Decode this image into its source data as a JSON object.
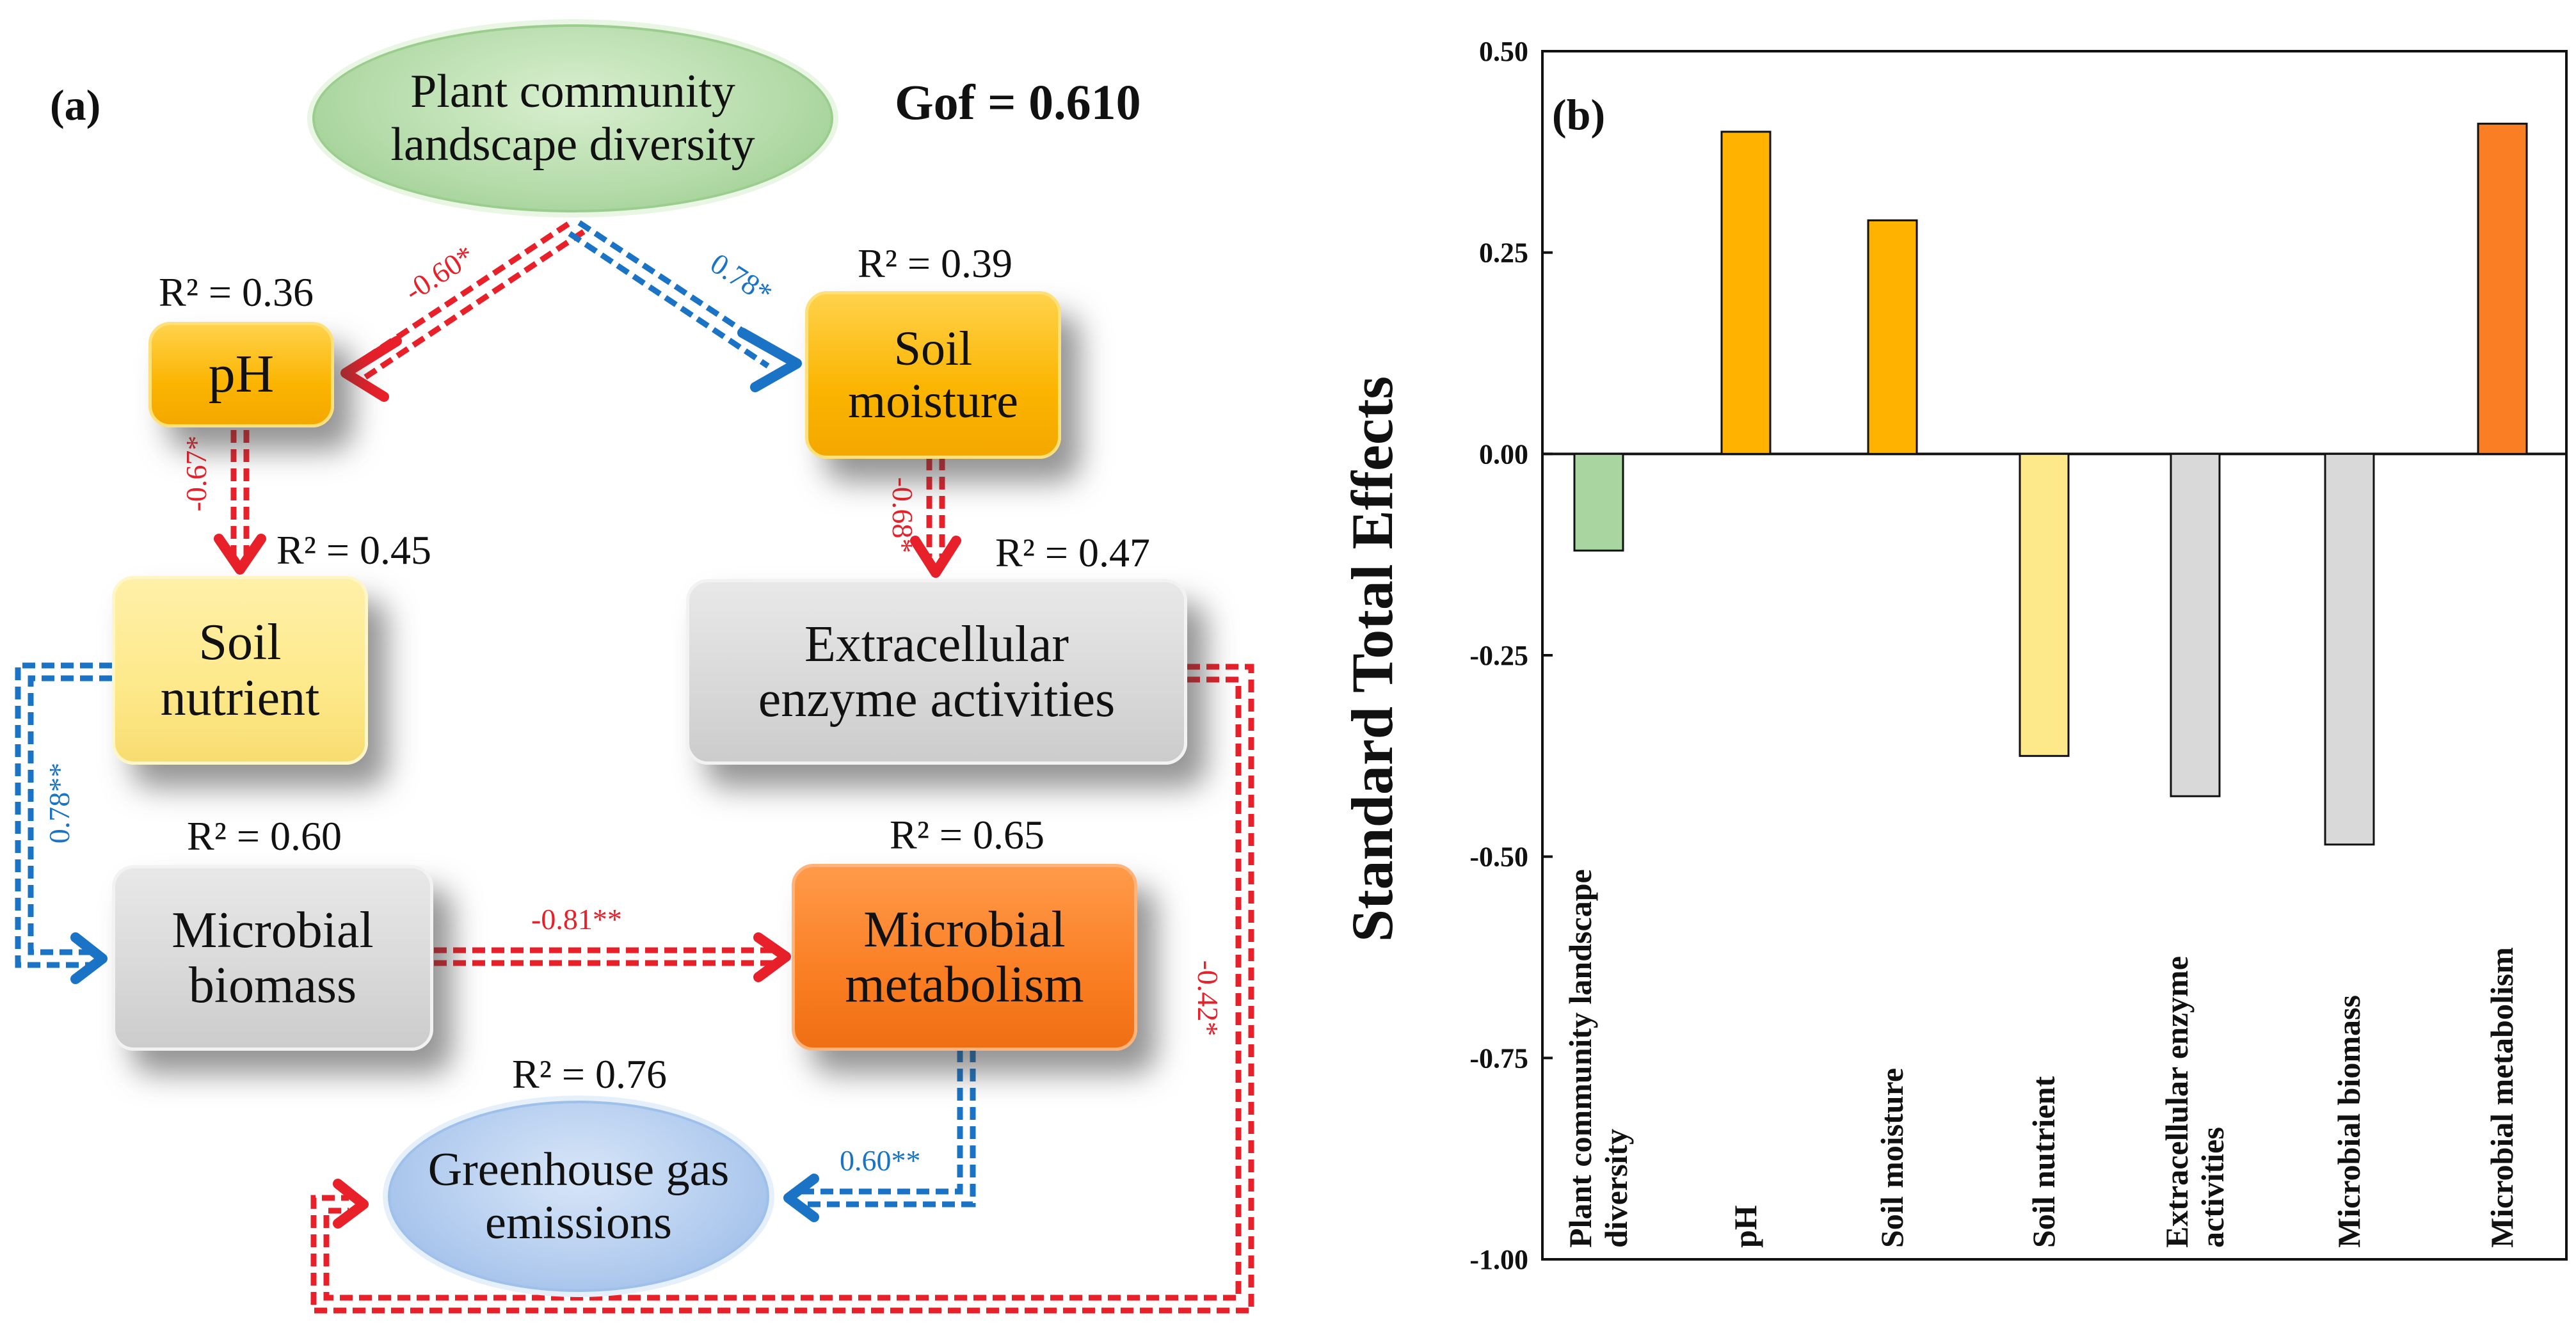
{
  "panel_a": {
    "label": "(a)",
    "gof": "Gof = 0.610",
    "nodes": {
      "plant": {
        "line1": "Plant community",
        "line2": "landscape diversity"
      },
      "ph": {
        "line1": "pH",
        "r2": "R² = 0.36"
      },
      "moisture": {
        "line1": "Soil",
        "line2": "moisture",
        "r2": "R² = 0.39"
      },
      "nutrient": {
        "line1": "Soil",
        "line2": "nutrient",
        "r2": "R² = 0.45"
      },
      "enzyme": {
        "line1": "Extracellular",
        "line2": "enzyme activities",
        "r2": "R² = 0.47"
      },
      "biomass": {
        "line1": "Microbial",
        "line2": "biomass",
        "r2": "R² = 0.60"
      },
      "metabolism": {
        "line1": "Microbial",
        "line2": "metabolism",
        "r2": "R² = 0.65"
      },
      "ghg": {
        "line1": "Greenhouse gas",
        "line2": "emissions",
        "r2": "R² = 0.76"
      }
    },
    "paths": {
      "plant_ph": "-0.60*",
      "plant_moisture": "0.78*",
      "ph_nutrient": "-0.67*",
      "moisture_enzyme": "-0.68*",
      "nutrient_biomass": "0.78**",
      "biomass_metabolism": "-0.81**",
      "metabolism_ghg": "0.60**",
      "enzyme_ghg": "-0.42*"
    },
    "colors": {
      "negative": "#e8202a",
      "positive": "#1a73c5"
    }
  },
  "panel_b": {
    "label": "(b)"
  },
  "chart_data": {
    "type": "bar",
    "title": "",
    "ylabel": "Standard Total Effects",
    "xlabel": "",
    "ylim": [
      -1.0,
      0.5
    ],
    "yticks": [
      0.5,
      0.25,
      0.0,
      -0.25,
      -0.5,
      -0.75,
      -1.0
    ],
    "ytick_labels": [
      "0.50",
      "0.25",
      "0.00",
      "-0.25",
      "-0.50",
      "-0.75",
      "-1.00"
    ],
    "grid": false,
    "categories": [
      [
        "Plant community landscape",
        "diversity"
      ],
      [
        "pH"
      ],
      [
        "Soil moisture"
      ],
      [
        "Soil nutrient"
      ],
      [
        "Extracellular enzyme",
        "activities"
      ],
      [
        "Microbial biomass"
      ],
      [
        "Microbial metabolism"
      ]
    ],
    "values": [
      -0.12,
      0.4,
      0.29,
      -0.375,
      -0.425,
      -0.485,
      0.41
    ],
    "colors": [
      "#a9d5a0",
      "#ffb200",
      "#ffb200",
      "#fde98a",
      "#d9d9d9",
      "#d9d9d9",
      "#fa7e23"
    ]
  }
}
